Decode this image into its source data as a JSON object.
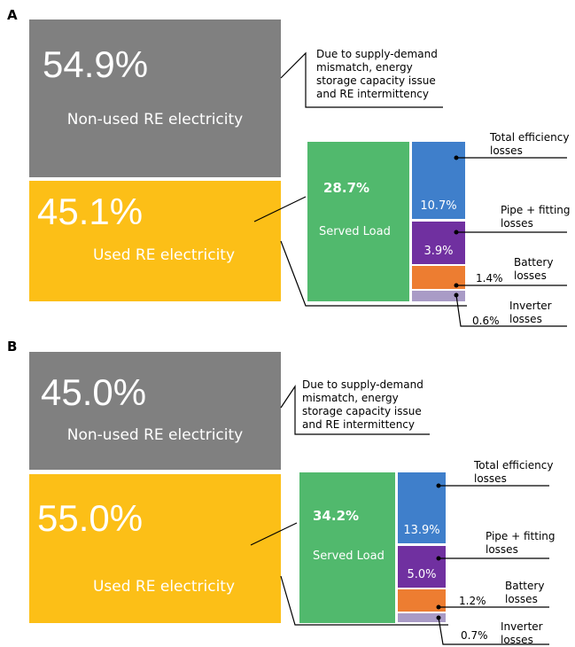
{
  "panels": [
    {
      "label": "A",
      "non_used": {
        "percent": "54.9%",
        "label": "Non-used RE electricity"
      },
      "used": {
        "percent": "45.1%",
        "label": "Used RE electricity"
      },
      "note": [
        "Due to supply-demand",
        "mismatch, energy",
        "storage capacity issue",
        "and RE intermittency"
      ],
      "served": {
        "percent": "28.7%",
        "label": "Served Load"
      },
      "losses": [
        {
          "name": [
            "Total efficiency",
            "losses"
          ],
          "percent": "10.7%"
        },
        {
          "name": [
            "Pipe + fitting",
            "losses"
          ],
          "percent": "3.9%"
        },
        {
          "name": [
            "Battery",
            "losses"
          ],
          "percent": "1.4%"
        },
        {
          "name": [
            "Inverter",
            "losses"
          ],
          "percent": "0.6%"
        }
      ]
    },
    {
      "label": "B",
      "non_used": {
        "percent": "45.0%",
        "label": "Non-used RE electricity"
      },
      "used": {
        "percent": "55.0%",
        "label": "Used RE electricity"
      },
      "note": [
        "Due to supply-demand",
        "mismatch, energy",
        "storage capacity issue",
        "and RE intermittency"
      ],
      "served": {
        "percent": "34.2%",
        "label": "Served Load"
      },
      "losses": [
        {
          "name": [
            "Total efficiency",
            "losses"
          ],
          "percent": "13.9%"
        },
        {
          "name": [
            "Pipe + fitting",
            "losses"
          ],
          "percent": "5.0%"
        },
        {
          "name": [
            "Battery",
            "losses"
          ],
          "percent": "1.2%"
        },
        {
          "name": [
            "Inverter",
            "losses"
          ],
          "percent": "0.7%"
        }
      ]
    }
  ]
}
